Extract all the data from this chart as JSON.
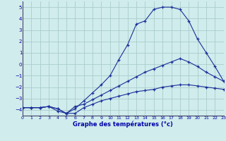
{
  "xlabel": "Graphe des températures (°c)",
  "xlim": [
    0,
    23
  ],
  "ylim": [
    -4.5,
    5.5
  ],
  "yticks": [
    -4,
    -3,
    -2,
    -1,
    0,
    1,
    2,
    3,
    4,
    5
  ],
  "xticks": [
    0,
    1,
    2,
    3,
    4,
    5,
    6,
    7,
    8,
    9,
    10,
    11,
    12,
    13,
    14,
    15,
    16,
    17,
    18,
    19,
    20,
    21,
    22,
    23
  ],
  "bg_color": "#d0ecec",
  "line_color": "#1a3099",
  "grid_color": "#aacccc",
  "line1_y": [
    -3.8,
    -3.8,
    -3.8,
    -3.7,
    -3.9,
    -4.3,
    -4.3,
    -3.8,
    -3.5,
    -3.2,
    -3.0,
    -2.8,
    -2.6,
    -2.4,
    -2.3,
    -2.2,
    -2.0,
    -1.9,
    -1.8,
    -1.8,
    -1.9,
    -2.0,
    -2.1,
    -2.2
  ],
  "line2_y": [
    -3.8,
    -3.8,
    -3.8,
    -3.7,
    -3.9,
    -4.3,
    -3.7,
    -3.5,
    -3.1,
    -2.7,
    -2.3,
    -1.9,
    -1.5,
    -1.1,
    -0.7,
    -0.4,
    -0.1,
    0.2,
    0.5,
    0.2,
    -0.2,
    -0.7,
    -1.1,
    -1.5
  ],
  "line3_y": [
    -3.8,
    -3.8,
    -3.8,
    -3.7,
    -4.1,
    -4.3,
    -3.9,
    -3.2,
    -2.5,
    -1.8,
    -1.0,
    0.4,
    1.7,
    3.5,
    3.8,
    4.8,
    5.0,
    5.0,
    4.8,
    3.8,
    2.2,
    1.0,
    -0.2,
    -1.5
  ],
  "figsize": [
    3.2,
    2.0
  ],
  "dpi": 100
}
